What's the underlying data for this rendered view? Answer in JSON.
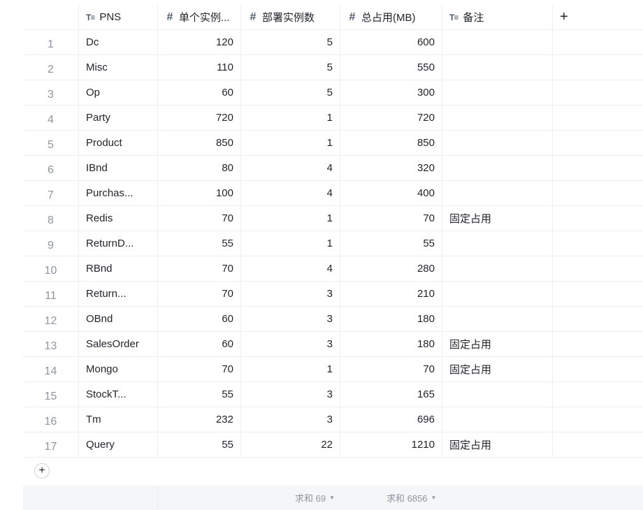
{
  "header": {
    "name": "PNS",
    "single": "单个实例...",
    "count": "部署实例数",
    "total": "总占用(MB)",
    "note": "备注",
    "add": "+"
  },
  "rows": [
    {
      "num": "1",
      "name": "Dc",
      "single": "120",
      "count": "5",
      "total": "600",
      "note": ""
    },
    {
      "num": "2",
      "name": "Misc",
      "single": "110",
      "count": "5",
      "total": "550",
      "note": ""
    },
    {
      "num": "3",
      "name": "Op",
      "single": "60",
      "count": "5",
      "total": "300",
      "note": ""
    },
    {
      "num": "4",
      "name": "Party",
      "single": "720",
      "count": "1",
      "total": "720",
      "note": ""
    },
    {
      "num": "5",
      "name": "Product",
      "single": "850",
      "count": "1",
      "total": "850",
      "note": ""
    },
    {
      "num": "6",
      "name": "IBnd",
      "single": "80",
      "count": "4",
      "total": "320",
      "note": ""
    },
    {
      "num": "7",
      "name": "Purchas...",
      "single": "100",
      "count": "4",
      "total": "400",
      "note": ""
    },
    {
      "num": "8",
      "name": "Redis",
      "single": "70",
      "count": "1",
      "total": "70",
      "note": "固定占用"
    },
    {
      "num": "9",
      "name": "ReturnD...",
      "single": "55",
      "count": "1",
      "total": "55",
      "note": ""
    },
    {
      "num": "10",
      "name": "RBnd",
      "single": "70",
      "count": "4",
      "total": "280",
      "note": ""
    },
    {
      "num": "11",
      "name": "Return...",
      "single": "70",
      "count": "3",
      "total": "210",
      "note": ""
    },
    {
      "num": "12",
      "name": "OBnd",
      "single": "60",
      "count": "3",
      "total": "180",
      "note": ""
    },
    {
      "num": "13",
      "name": "SalesOrder",
      "single": "60",
      "count": "3",
      "total": "180",
      "note": "固定占用"
    },
    {
      "num": "14",
      "name": "Mongo",
      "single": "70",
      "count": "1",
      "total": "70",
      "note": "固定占用"
    },
    {
      "num": "15",
      "name": "StockT...",
      "single": "55",
      "count": "3",
      "total": "165",
      "note": ""
    },
    {
      "num": "16",
      "name": "Tm",
      "single": "232",
      "count": "3",
      "total": "696",
      "note": ""
    },
    {
      "num": "17",
      "name": "Query",
      "single": "55",
      "count": "22",
      "total": "1210",
      "note": "固定占用"
    }
  ],
  "add_row": "+",
  "footer": {
    "count_sum": "求和 69",
    "total_sum": "求和 6856"
  },
  "icons": {
    "text_field": "text-field-icon",
    "number_field": "number-field-icon",
    "dropdown": "caret-down-icon"
  }
}
